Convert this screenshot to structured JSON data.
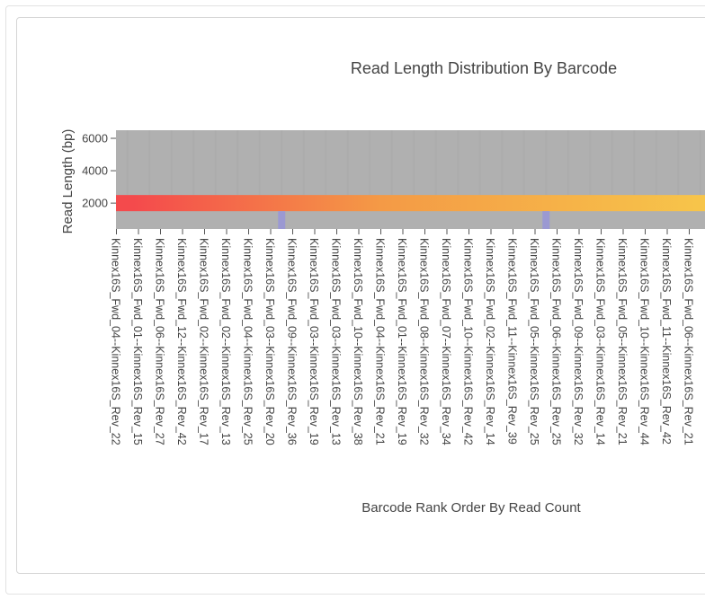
{
  "chart_data": {
    "type": "heatmap",
    "title": "Read Length Distribution By Barcode",
    "xlabel": "Barcode Rank Order By Read Count",
    "ylabel": "Read Length (bp)",
    "ylim": [
      400,
      6500
    ],
    "y_ticks": [
      2000,
      4000,
      6000
    ],
    "y_tick_labels": [
      "2000",
      "4000",
      "6000"
    ],
    "x_tick_labels": [
      "Kinnex16S_Fwd_04--Kinnex16S_Rev_22",
      "Kinnex16S_Fwd_01--Kinnex16S_Rev_15",
      "Kinnex16S_Fwd_06--Kinnex16S_Rev_27",
      "Kinnex16S_Fwd_12--Kinnex16S_Rev_42",
      "Kinnex16S_Fwd_02--Kinnex16S_Rev_17",
      "Kinnex16S_Fwd_02--Kinnex16S_Rev_13",
      "Kinnex16S_Fwd_04--Kinnex16S_Rev_25",
      "Kinnex16S_Fwd_03--Kinnex16S_Rev_20",
      "Kinnex16S_Fwd_09--Kinnex16S_Rev_36",
      "Kinnex16S_Fwd_03--Kinnex16S_Rev_19",
      "Kinnex16S_Fwd_03--Kinnex16S_Rev_13",
      "Kinnex16S_Fwd_10--Kinnex16S_Rev_38",
      "Kinnex16S_Fwd_04--Kinnex16S_Rev_21",
      "Kinnex16S_Fwd_01--Kinnex16S_Rev_19",
      "Kinnex16S_Fwd_08--Kinnex16S_Rev_32",
      "Kinnex16S_Fwd_07--Kinnex16S_Rev_34",
      "Kinnex16S_Fwd_10--Kinnex16S_Rev_42",
      "Kinnex16S_Fwd_02--Kinnex16S_Rev_14",
      "Kinnex16S_Fwd_11--Kinnex16S_Rev_39",
      "Kinnex16S_Fwd_05--Kinnex16S_Rev_25",
      "Kinnex16S_Fwd_06--Kinnex16S_Rev_25",
      "Kinnex16S_Fwd_09--Kinnex16S_Rev_32",
      "Kinnex16S_Fwd_03--Kinnex16S_Rev_14",
      "Kinnex16S_Fwd_05--Kinnex16S_Rev_21",
      "Kinnex16S_Fwd_10--Kinnex16S_Rev_44",
      "Kinnex16S_Fwd_11--Kinnex16S_Rev_42",
      "Kinnex16S_Fwd_06--Kinnex16S_Rev_21"
    ],
    "grid": false,
    "legend": "none",
    "colors": {
      "background": "#b0b0b0",
      "band_start": "#f44a4c",
      "band_mid": "#f49a46",
      "band_end": "#f7c54a",
      "low_marker": "#9b99d2"
    },
    "highlight_band": {
      "y_low": 1500,
      "y_high": 2500
    },
    "low_markers": [
      {
        "barcode_index": 7.5,
        "y_low": 400,
        "y_high": 1500
      },
      {
        "barcode_index": 19.5,
        "y_low": 400,
        "y_high": 1500
      }
    ]
  }
}
